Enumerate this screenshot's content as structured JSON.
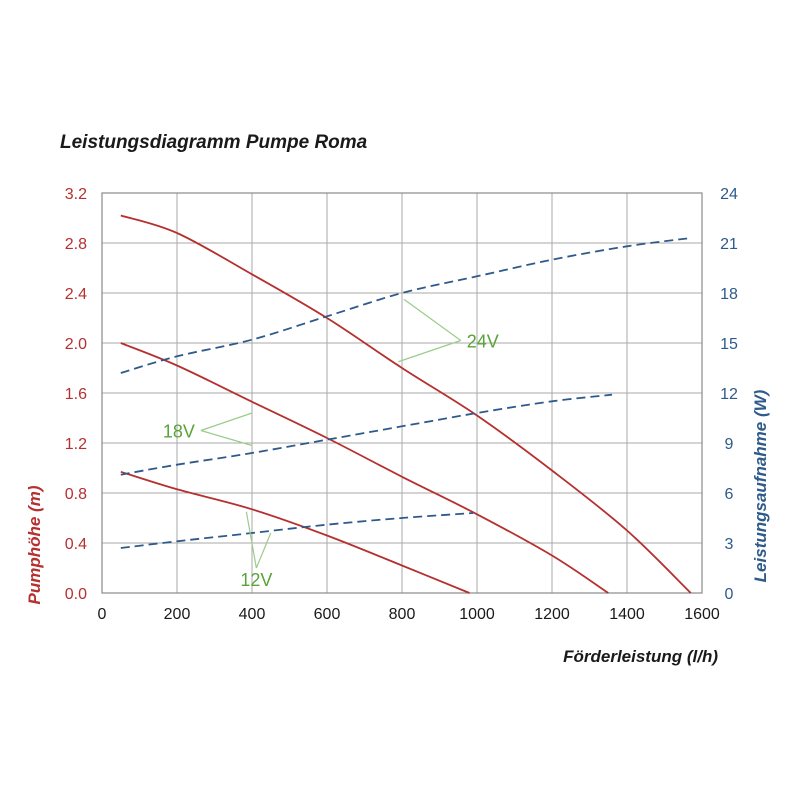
{
  "chart_data": {
    "type": "line",
    "title": "Leistungsdiagramm Pumpe Roma",
    "xlabel": "Förderleistung (l/h)",
    "ylabel": "Pumphöhe (m)",
    "ylabel_right": "Leistungsaufnahme (W)",
    "xlim": [
      0,
      1600
    ],
    "ylim": [
      0,
      3.2
    ],
    "ylim_right": [
      0,
      24
    ],
    "x_ticks": [
      "0",
      "200",
      "400",
      "600",
      "800",
      "1000",
      "1200",
      "1400",
      "1600"
    ],
    "y_ticks": [
      "0.0",
      "0.4",
      "0.8",
      "1.2",
      "1.6",
      "2.0",
      "2.4",
      "2.8",
      "3.2"
    ],
    "y_ticks_right": [
      "0",
      "3",
      "6",
      "9",
      "12",
      "15",
      "18",
      "21",
      "24"
    ],
    "grid": true,
    "colors": {
      "head": "#b5302e",
      "power": "#2e5a8a",
      "annotation": "#5aa33a",
      "grid": "#aaaaaa"
    },
    "series": [
      {
        "axis": "left",
        "style": "solid",
        "x": [
          50,
          200,
          400,
          600,
          800,
          1000,
          1200,
          1400,
          1570
        ],
        "y": [
          3.02,
          2.88,
          2.55,
          2.2,
          1.8,
          1.42,
          0.98,
          0.5,
          0.0
        ]
      },
      {
        "axis": "left",
        "style": "solid",
        "x": [
          50,
          200,
          400,
          600,
          800,
          1000,
          1200,
          1350
        ],
        "y": [
          2.0,
          1.82,
          1.53,
          1.24,
          0.93,
          0.63,
          0.3,
          0.0
        ]
      },
      {
        "axis": "left",
        "style": "solid",
        "x": [
          50,
          200,
          400,
          600,
          800,
          980
        ],
        "y": [
          0.97,
          0.83,
          0.67,
          0.46,
          0.22,
          0.0
        ]
      },
      {
        "axis": "right",
        "style": "dashed",
        "x": [
          50,
          200,
          400,
          600,
          800,
          1000,
          1200,
          1400,
          1570
        ],
        "y": [
          13.2,
          14.2,
          15.2,
          16.6,
          18.0,
          19.0,
          20.0,
          20.8,
          21.3
        ]
      },
      {
        "axis": "right",
        "style": "dashed",
        "x": [
          50,
          200,
          400,
          600,
          800,
          1000,
          1200,
          1360
        ],
        "y": [
          7.1,
          7.7,
          8.4,
          9.2,
          10.0,
          10.8,
          11.5,
          11.9
        ]
      },
      {
        "axis": "right",
        "style": "dashed",
        "x": [
          50,
          200,
          400,
          600,
          800,
          990
        ],
        "y": [
          2.7,
          3.1,
          3.6,
          4.1,
          4.5,
          4.8
        ]
      }
    ],
    "annotations": [
      {
        "text": "24V",
        "x": 1010,
        "y": 2.02,
        "targets": [
          [
            805,
            2.35
          ],
          [
            790,
            1.85
          ]
        ]
      },
      {
        "text": "18V",
        "x": 205,
        "y": 1.3,
        "targets": [
          [
            400,
            1.44
          ],
          [
            400,
            1.18
          ]
        ]
      },
      {
        "text": "12V",
        "x": 385,
        "y": 0.12,
        "targets": [
          [
            385,
            0.65
          ],
          [
            450,
            0.48
          ]
        ]
      }
    ]
  }
}
